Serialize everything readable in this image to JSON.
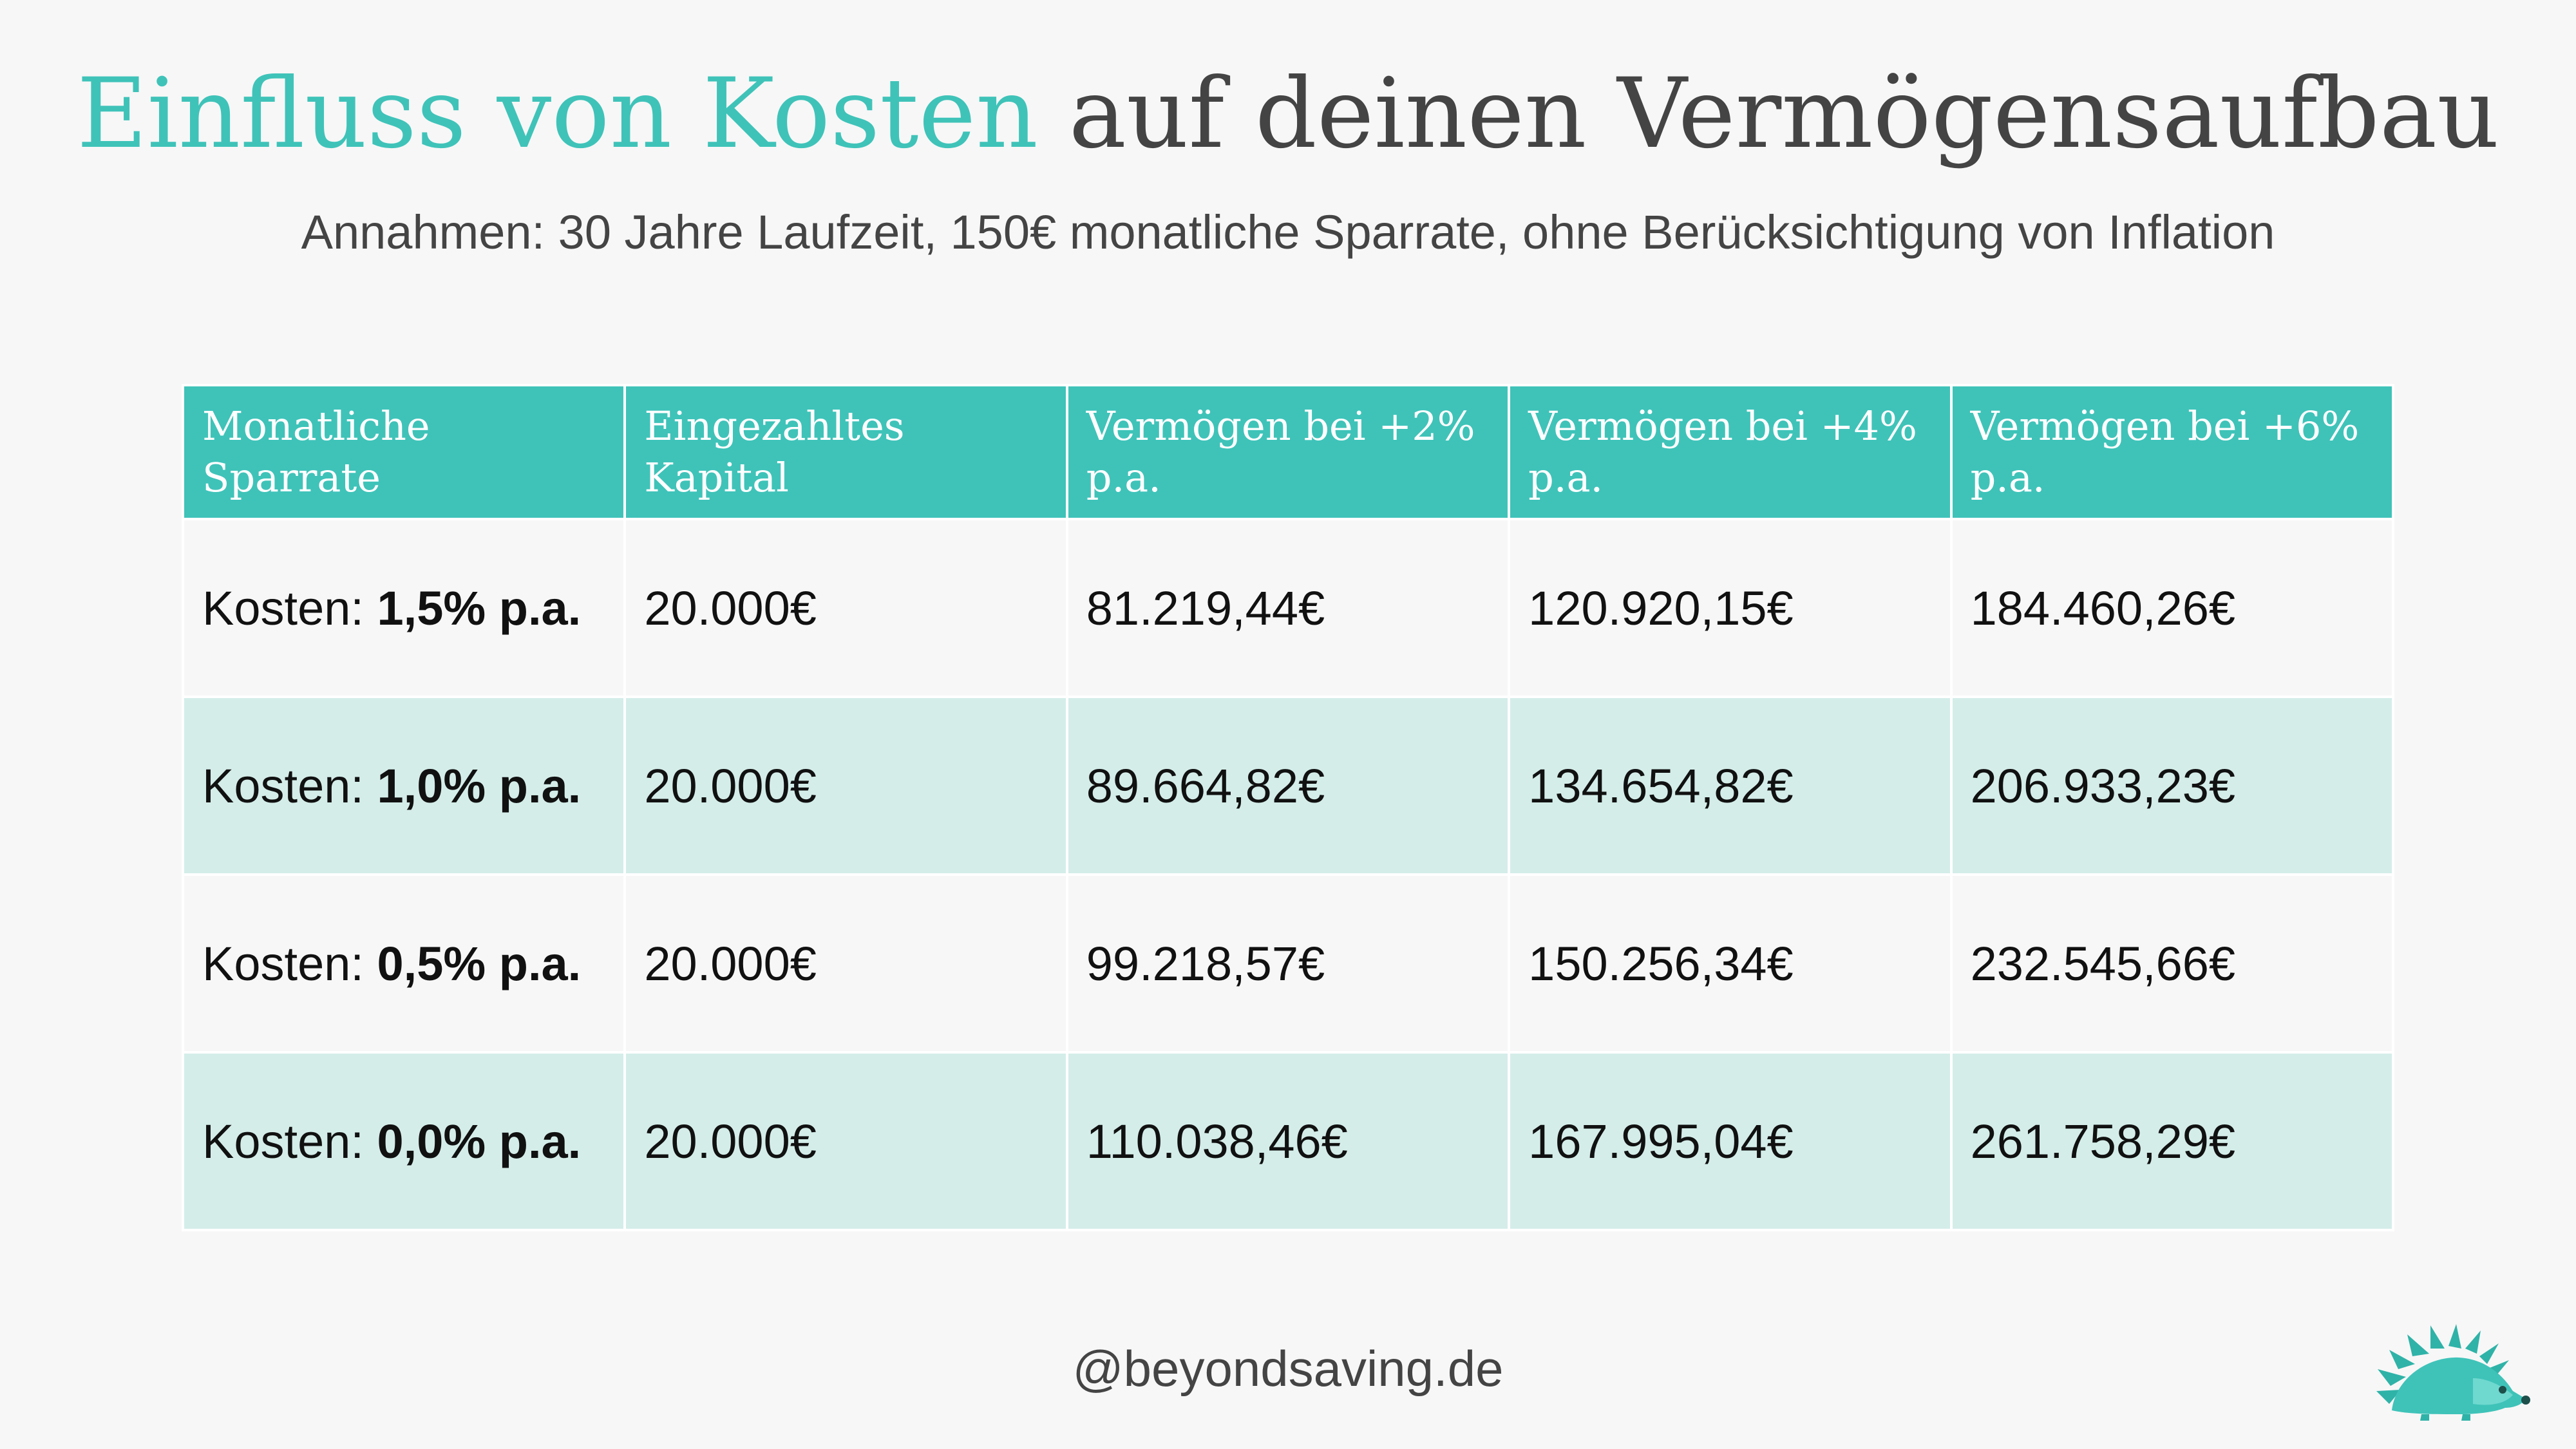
{
  "title": {
    "highlight": "Einfluss von Kosten",
    "rest": " auf deinen Vermögensaufbau"
  },
  "subtitle": "Annahmen: 30 Jahre Laufzeit, 150€ monatliche Sparrate, ohne Berücksichtigung von Inflation",
  "table": {
    "headers": [
      "Monatliche Sparrate",
      "Eingezahltes Kapital",
      "Vermögen bei +2% p.a.",
      "Vermögen bei +4% p.a.",
      "Vermögen bei +6% p.a."
    ],
    "rows": [
      {
        "cost_prefix": "Kosten: ",
        "cost_value": "1,5% p.a.",
        "capital": "20.000€",
        "v2": "81.219,44€",
        "v4": "120.920,15€",
        "v6": "184.460,26€"
      },
      {
        "cost_prefix": "Kosten: ",
        "cost_value": "1,0% p.a.",
        "capital": "20.000€",
        "v2": "89.664,82€",
        "v4": "134.654,82€",
        "v6": "206.933,23€"
      },
      {
        "cost_prefix": "Kosten: ",
        "cost_value": "0,5% p.a.",
        "capital": "20.000€",
        "v2": "99.218,57€",
        "v4": "150.256,34€",
        "v6": "232.545,66€"
      },
      {
        "cost_prefix": "Kosten: ",
        "cost_value": "0,0% p.a.",
        "capital": "20.000€",
        "v2": "110.038,46€",
        "v4": "167.995,04€",
        "v6": "261.758,29€"
      }
    ]
  },
  "footer": "@beyondsaving.de",
  "logo_icon": "hedgehog-icon",
  "colors": {
    "accent": "#3fc3b9",
    "row_alt": "#d4ede9",
    "background": "#f7f7f7",
    "text_dark": "#444444"
  }
}
